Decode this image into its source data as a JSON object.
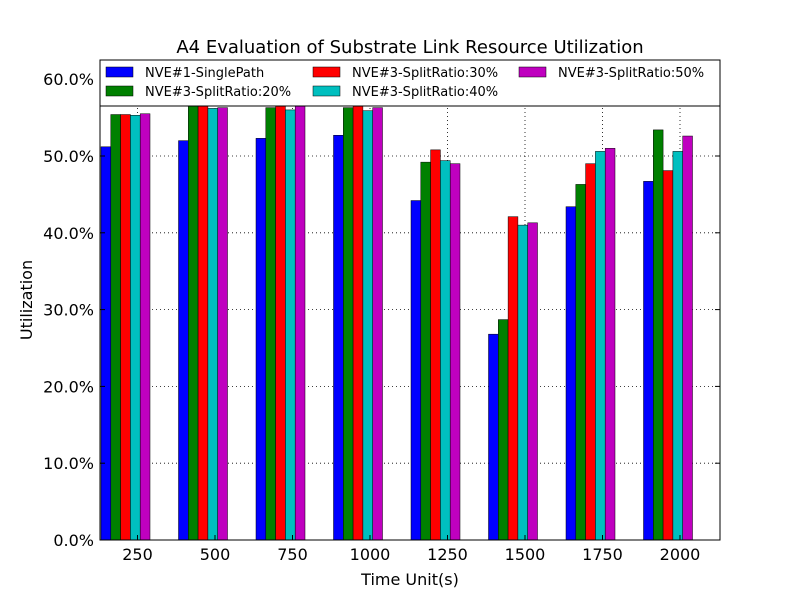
{
  "chart_data": {
    "type": "bar",
    "title": "A4 Evaluation of Substrate Link Resource Utilization",
    "xlabel": "Time Unit(s)",
    "ylabel": "Utilization",
    "ylim": [
      0,
      62.5
    ],
    "yticks": [
      "0.0%",
      "10.0%",
      "20.0%",
      "30.0%",
      "40.0%",
      "50.0%",
      "60.0%"
    ],
    "grid": true,
    "legend_position": "top",
    "categories": [
      "250",
      "500",
      "750",
      "1000",
      "1250",
      "1500",
      "1750",
      "2000"
    ],
    "series": [
      {
        "name": "NVE#1-SinglePath",
        "color": "#0000ff",
        "values": [
          51.2,
          52.0,
          52.3,
          52.7,
          44.2,
          26.8,
          43.4,
          46.7
        ]
      },
      {
        "name": "NVE#3-SplitRatio:20%",
        "color": "#008000",
        "values": [
          55.4,
          56.5,
          56.3,
          56.3,
          49.2,
          28.7,
          46.3,
          53.4
        ]
      },
      {
        "name": "NVE#3-SplitRatio:30%",
        "color": "#ff0000",
        "values": [
          55.4,
          56.6,
          56.9,
          56.8,
          50.8,
          42.1,
          49.0,
          48.1
        ]
      },
      {
        "name": "NVE#3-SplitRatio:40%",
        "color": "#00bfbf",
        "values": [
          55.3,
          56.2,
          56.0,
          55.9,
          49.4,
          41.0,
          50.6,
          50.6
        ]
      },
      {
        "name": "NVE#3-SplitRatio:50%",
        "color": "#bf00bf",
        "values": [
          55.5,
          56.3,
          56.6,
          56.3,
          49.0,
          41.3,
          51.0,
          52.6
        ]
      }
    ]
  }
}
